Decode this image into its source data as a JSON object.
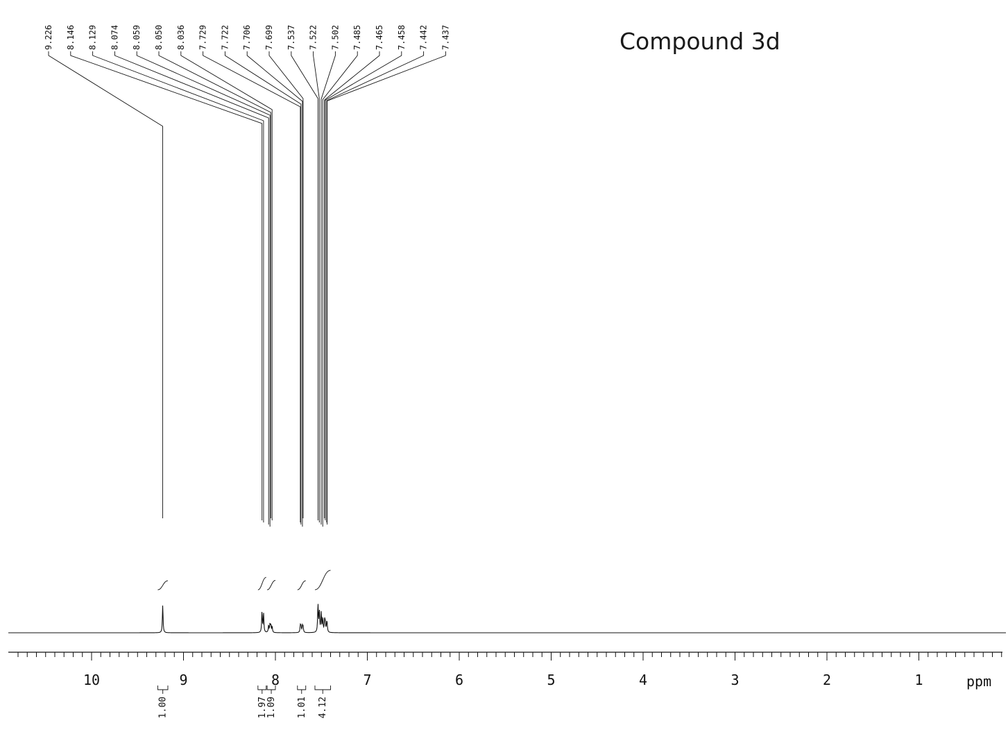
{
  "title": "Compound 3d",
  "chart_data": {
    "type": "line",
    "title": "Compound 3d",
    "xlabel": "ppm",
    "ylabel": "",
    "xlim": [
      10.9,
      0.02
    ],
    "x_reversed": true,
    "grid": false,
    "major_ticks": [
      {
        "value": 10,
        "label": "10"
      },
      {
        "value": 9,
        "label": "9"
      },
      {
        "value": 8,
        "label": "8"
      },
      {
        "value": 7,
        "label": "7"
      },
      {
        "value": 6,
        "label": "6"
      },
      {
        "value": 5,
        "label": "5"
      },
      {
        "value": 4,
        "label": "4"
      },
      {
        "value": 3,
        "label": "3"
      },
      {
        "value": 2,
        "label": "2"
      },
      {
        "value": 1,
        "label": "1"
      }
    ],
    "peak_labels": [
      {
        "shift": 9.226,
        "label": "9.226"
      },
      {
        "shift": 8.146,
        "label": "8.146"
      },
      {
        "shift": 8.129,
        "label": "8.129"
      },
      {
        "shift": 8.074,
        "label": "8.074"
      },
      {
        "shift": 8.059,
        "label": "8.059"
      },
      {
        "shift": 8.05,
        "label": "8.050"
      },
      {
        "shift": 8.036,
        "label": "8.036"
      },
      {
        "shift": 7.729,
        "label": "7.729"
      },
      {
        "shift": 7.722,
        "label": "7.722"
      },
      {
        "shift": 7.706,
        "label": "7.706"
      },
      {
        "shift": 7.699,
        "label": "7.699"
      },
      {
        "shift": 7.537,
        "label": "7.537"
      },
      {
        "shift": 7.522,
        "label": "7.522"
      },
      {
        "shift": 7.502,
        "label": "7.502"
      },
      {
        "shift": 7.485,
        "label": "7.485"
      },
      {
        "shift": 7.465,
        "label": "7.465"
      },
      {
        "shift": 7.458,
        "label": "7.458"
      },
      {
        "shift": 7.442,
        "label": "7.442"
      },
      {
        "shift": 7.437,
        "label": "7.437"
      }
    ],
    "peaks": [
      {
        "shift": 9.226,
        "intensity": 0.55
      },
      {
        "shift": 8.146,
        "intensity": 0.42
      },
      {
        "shift": 8.129,
        "intensity": 0.38
      },
      {
        "shift": 8.074,
        "intensity": 0.14
      },
      {
        "shift": 8.059,
        "intensity": 0.16
      },
      {
        "shift": 8.05,
        "intensity": 0.13
      },
      {
        "shift": 8.036,
        "intensity": 0.12
      },
      {
        "shift": 7.729,
        "intensity": 0.13
      },
      {
        "shift": 7.722,
        "intensity": 0.12
      },
      {
        "shift": 7.706,
        "intensity": 0.12
      },
      {
        "shift": 7.699,
        "intensity": 0.11
      },
      {
        "shift": 7.537,
        "intensity": 0.56
      },
      {
        "shift": 7.522,
        "intensity": 0.42
      },
      {
        "shift": 7.502,
        "intensity": 0.38
      },
      {
        "shift": 7.485,
        "intensity": 0.28
      },
      {
        "shift": 7.465,
        "intensity": 0.22
      },
      {
        "shift": 7.458,
        "intensity": 0.18
      },
      {
        "shift": 7.442,
        "intensity": 0.15
      },
      {
        "shift": 7.437,
        "intensity": 0.12
      }
    ],
    "integrals": [
      {
        "from": 9.28,
        "to": 9.17,
        "value": "1.00"
      },
      {
        "from": 8.19,
        "to": 8.1,
        "value": "1.97"
      },
      {
        "from": 8.09,
        "to": 8.0,
        "value": "1.09"
      },
      {
        "from": 7.76,
        "to": 7.67,
        "value": "1.01"
      },
      {
        "from": 7.57,
        "to": 7.4,
        "value": "4.12"
      }
    ]
  }
}
